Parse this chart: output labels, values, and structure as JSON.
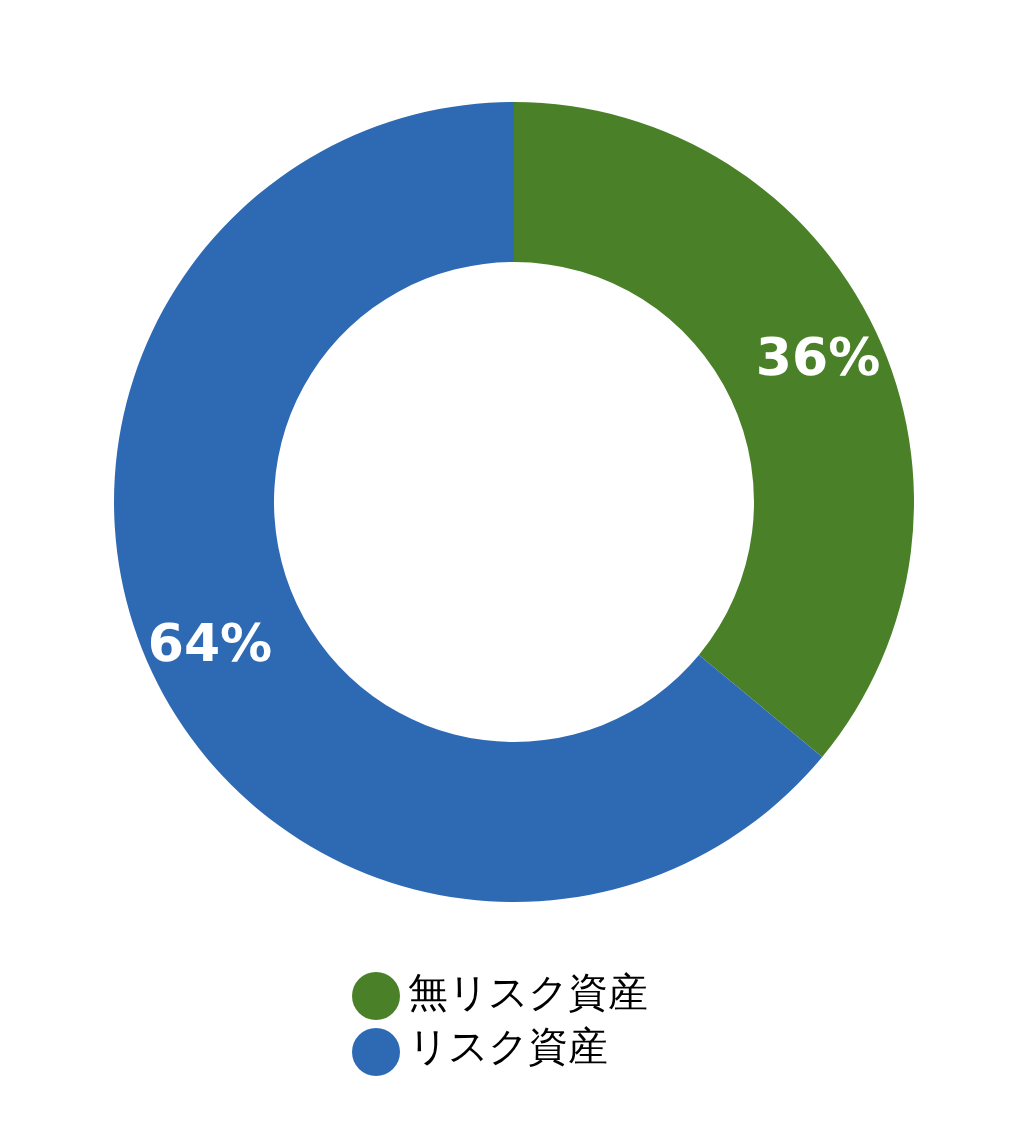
{
  "chart_data": {
    "type": "donut",
    "categories": [
      "無リスク資産",
      "リスク資産"
    ],
    "values": [
      36,
      64
    ],
    "colors": [
      "#4a8128",
      "#2e6ab4"
    ],
    "value_labels": [
      "36%",
      "64%"
    ],
    "legend": "bottom"
  }
}
